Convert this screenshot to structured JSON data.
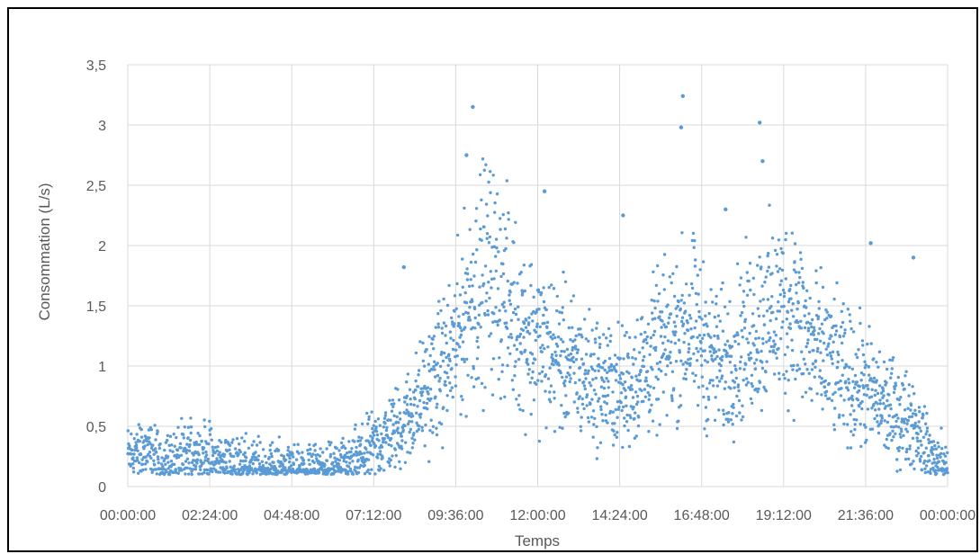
{
  "chart_data": {
    "type": "scatter",
    "title": "",
    "xlabel": "Temps",
    "ylabel": "Consommation (L/s)",
    "xlim": [
      "00:00:00",
      "00:00:00 (+24h)"
    ],
    "ylim": [
      0,
      3.5
    ],
    "x_ticks": [
      "00:00:00",
      "02:24:00",
      "04:48:00",
      "07:12:00",
      "09:36:00",
      "12:00:00",
      "14:24:00",
      "16:48:00",
      "19:12:00",
      "21:36:00",
      "00:00:00"
    ],
    "y_ticks": [
      "0",
      "0,5",
      "1",
      "1,5",
      "2",
      "2,5",
      "3",
      "3,5"
    ],
    "grid": true,
    "legend": "none",
    "marker_color": "#5B9BD5",
    "series": [
      {
        "x": [
          "00:00",
          "00:30",
          "01:00",
          "01:30",
          "02:00",
          "02:30",
          "03:00",
          "03:30",
          "04:00",
          "04:30",
          "05:00",
          "05:30",
          "06:00",
          "06:30",
          "07:00",
          "07:30",
          "08:00",
          "08:30",
          "09:00",
          "09:30",
          "10:00",
          "10:30",
          "11:00",
          "11:30",
          "12:00",
          "12:30",
          "13:00",
          "13:30",
          "14:00",
          "14:30",
          "15:00",
          "15:30",
          "16:00",
          "16:30",
          "17:00",
          "17:30",
          "18:00",
          "18:30",
          "19:00",
          "19:30",
          "20:00",
          "20:30",
          "21:00",
          "21:30",
          "22:00",
          "22:30",
          "23:00",
          "23:30",
          "24:00"
        ],
        "values": [
          0.25,
          0.3,
          0.2,
          0.22,
          0.3,
          0.22,
          0.2,
          0.18,
          0.15,
          0.15,
          0.14,
          0.14,
          0.15,
          0.18,
          0.28,
          0.4,
          0.5,
          0.7,
          0.9,
          1.1,
          1.55,
          1.8,
          1.6,
          1.35,
          1.2,
          1.1,
          1.0,
          0.9,
          0.85,
          0.8,
          0.95,
          1.1,
          1.25,
          1.35,
          1.1,
          1.0,
          1.2,
          1.35,
          1.45,
          1.5,
          1.15,
          1.05,
          0.9,
          0.85,
          0.7,
          0.6,
          0.55,
          0.25,
          0.15
        ]
      }
    ],
    "peaks": [
      {
        "x": "10:06",
        "y": 3.15
      },
      {
        "x": "16:15",
        "y": 3.24
      },
      {
        "x": "18:30",
        "y": 3.02
      },
      {
        "x": "09:55",
        "y": 2.75
      },
      {
        "x": "12:12",
        "y": 2.45
      },
      {
        "x": "16:12",
        "y": 2.98
      },
      {
        "x": "18:35",
        "y": 2.7
      },
      {
        "x": "17:30",
        "y": 2.3
      },
      {
        "x": "14:30",
        "y": 2.25
      },
      {
        "x": "21:45",
        "y": 2.02
      },
      {
        "x": "23:00",
        "y": 1.9
      },
      {
        "x": "08:05",
        "y": 1.82
      }
    ]
  }
}
